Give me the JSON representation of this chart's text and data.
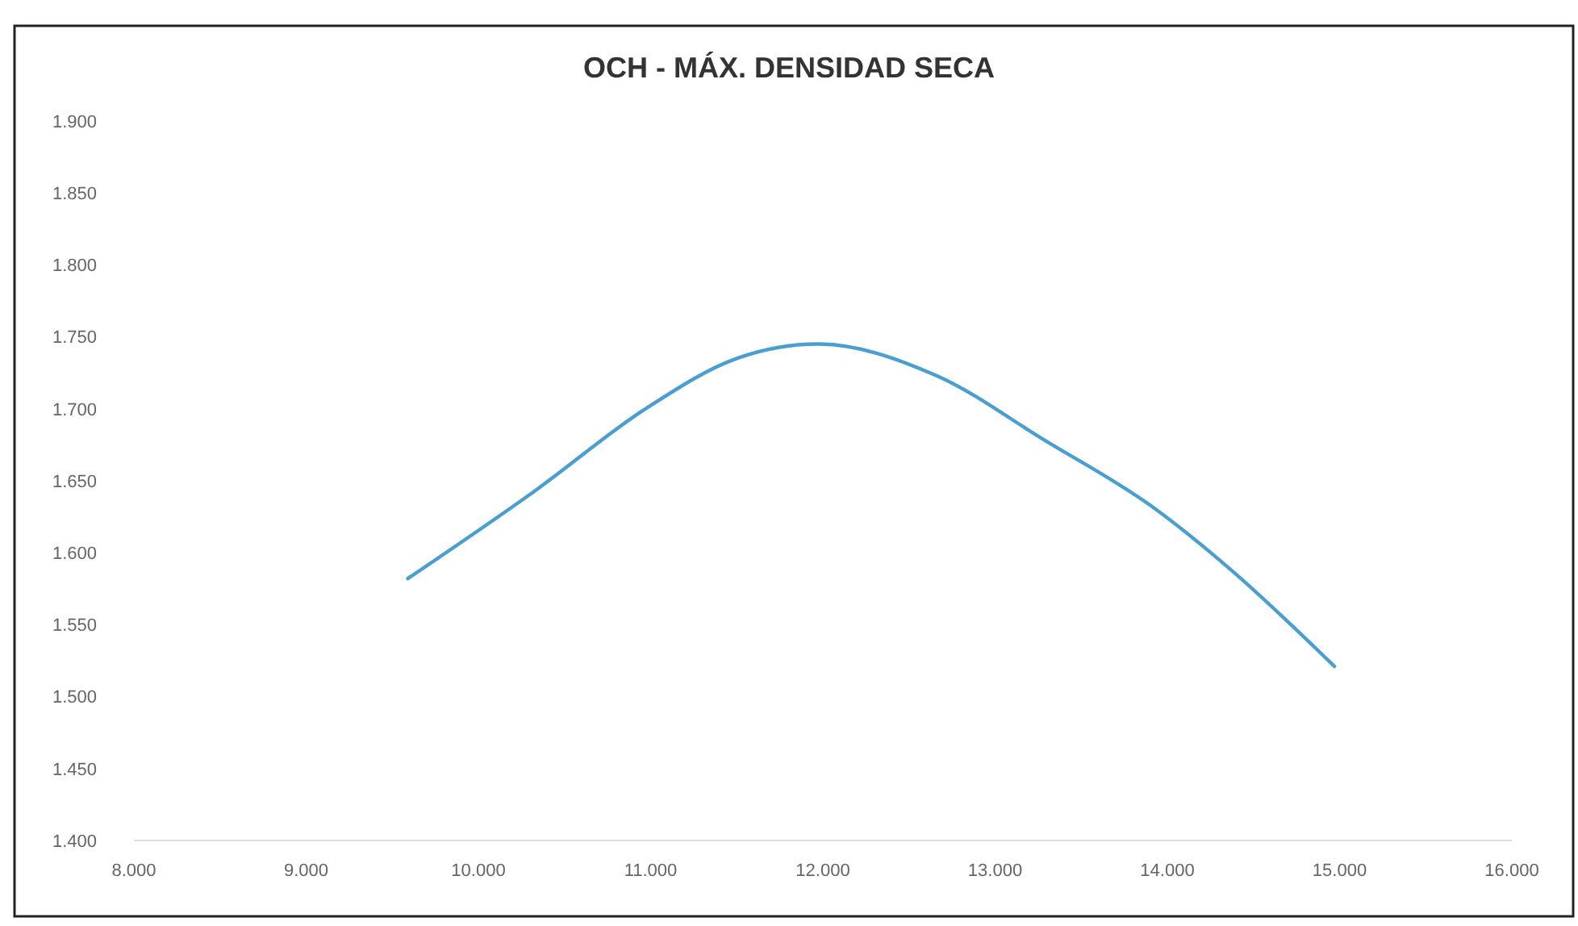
{
  "chart_data": {
    "type": "line",
    "title": "OCH - MÁX. DENSIDAD SECA",
    "x": [
      9.59,
      10.34,
      10.97,
      11.5,
      11.97,
      12.66,
      13.29,
      13.9,
      14.37,
      14.97
    ],
    "series": [
      {
        "color": "#4a9fd0",
        "values": [
          1.582,
          1.644,
          1.7,
          1.735,
          1.745,
          1.723,
          1.678,
          1.633,
          1.588,
          1.521
        ]
      }
    ],
    "xlim": [
      8,
      16
    ],
    "xticks": [
      {
        "value": 8,
        "label": "8.000"
      },
      {
        "value": 9,
        "label": "9.000"
      },
      {
        "value": 10,
        "label": "10.000"
      },
      {
        "value": 11,
        "label": "11.000"
      },
      {
        "value": 12,
        "label": "12.000"
      },
      {
        "value": 13,
        "label": "13.000"
      },
      {
        "value": 14,
        "label": "14.000"
      },
      {
        "value": 15,
        "label": "15.000"
      },
      {
        "value": 16,
        "label": "16.000"
      }
    ],
    "ylim": [
      1.4,
      1.9
    ],
    "yticks": [
      {
        "value": 1.4,
        "label": "1.400"
      },
      {
        "value": 1.45,
        "label": "1.450"
      },
      {
        "value": 1.5,
        "label": "1.500"
      },
      {
        "value": 1.55,
        "label": "1.550"
      },
      {
        "value": 1.6,
        "label": "1.600"
      },
      {
        "value": 1.65,
        "label": "1.650"
      },
      {
        "value": 1.7,
        "label": "1.700"
      },
      {
        "value": 1.75,
        "label": "1.750"
      },
      {
        "value": 1.8,
        "label": "1.800"
      },
      {
        "value": 1.85,
        "label": "1.850"
      },
      {
        "value": 1.9,
        "label": "1.900"
      }
    ],
    "marker": "none",
    "line_style": "solid",
    "grid": false
  }
}
